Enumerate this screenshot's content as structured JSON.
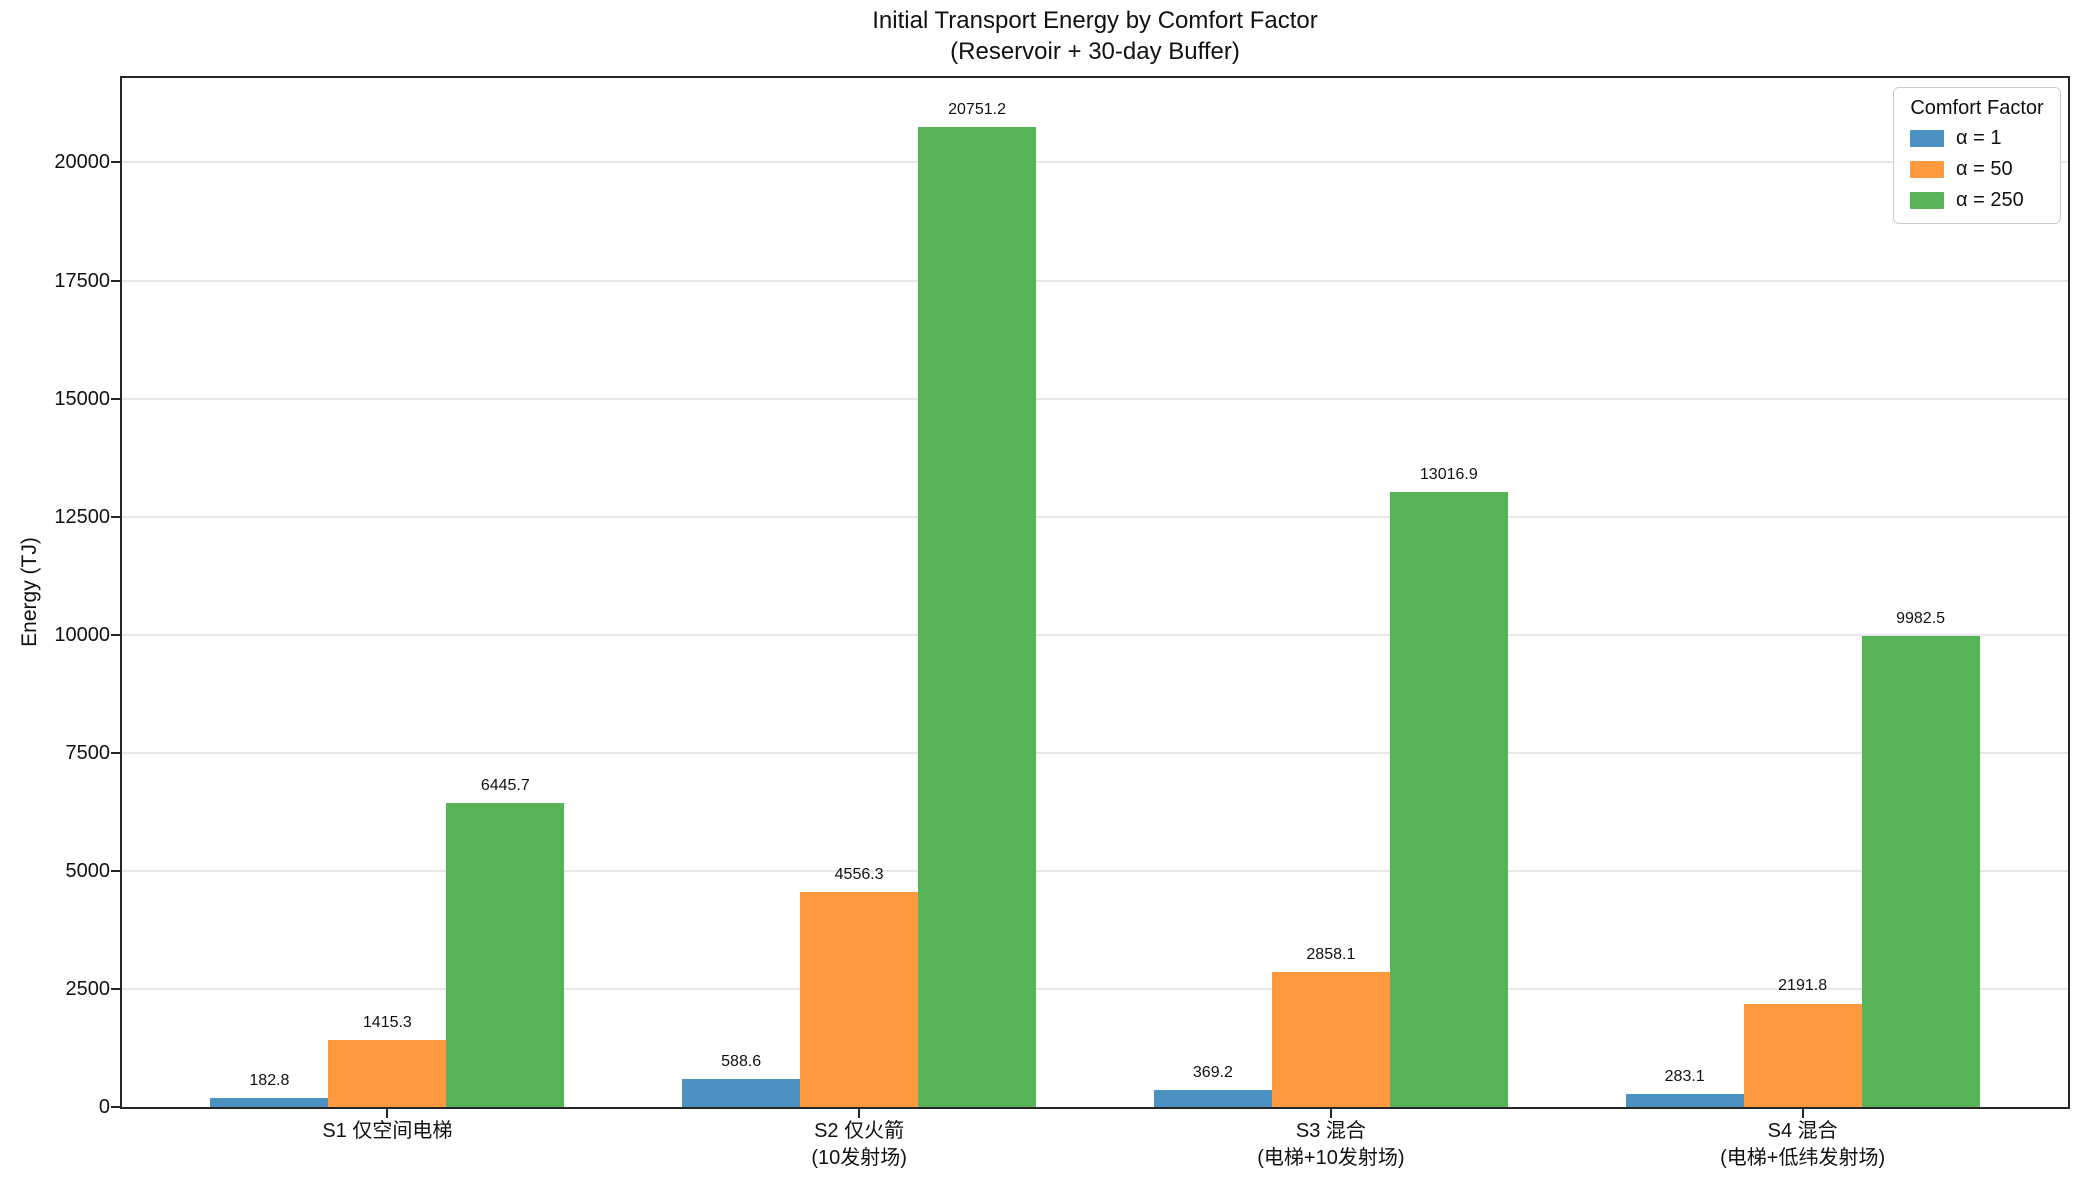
{
  "chart_data": {
    "type": "bar",
    "title": "Initial Transport Energy by Comfort Factor\n(Reservoir + 30-day Buffer)",
    "ylabel": "Energy (TJ)",
    "xlabel": "",
    "ylim": [
      0,
      21788
    ],
    "yticks": [
      0,
      2500,
      5000,
      7500,
      10000,
      12500,
      15000,
      17500,
      20000
    ],
    "grid": "horizontal",
    "bar_value_labels": true,
    "categories": [
      "S1 仅空间电梯",
      "S2 仅火箭\n(10发射场)",
      "S3 混合\n(电梯+10发射场)",
      "S4 混合\n(电梯+低纬发射场)"
    ],
    "series": [
      {
        "name": "α = 1",
        "color": "#4B92C3",
        "values": [
          182.8,
          588.6,
          369.2,
          283.1
        ]
      },
      {
        "name": "α = 50",
        "color": "#FF993F",
        "values": [
          1415.3,
          4556.3,
          2858.1,
          2191.8
        ]
      },
      {
        "name": "α = 250",
        "color": "#57B358",
        "values": [
          6445.7,
          20751.2,
          13016.9,
          9982.5
        ]
      }
    ],
    "legend": {
      "title": "Comfort Factor",
      "position": "upper right"
    }
  },
  "colors": {
    "grid": "#e7e7e7",
    "spine": "#262626",
    "legend_border": "#cccccc"
  }
}
